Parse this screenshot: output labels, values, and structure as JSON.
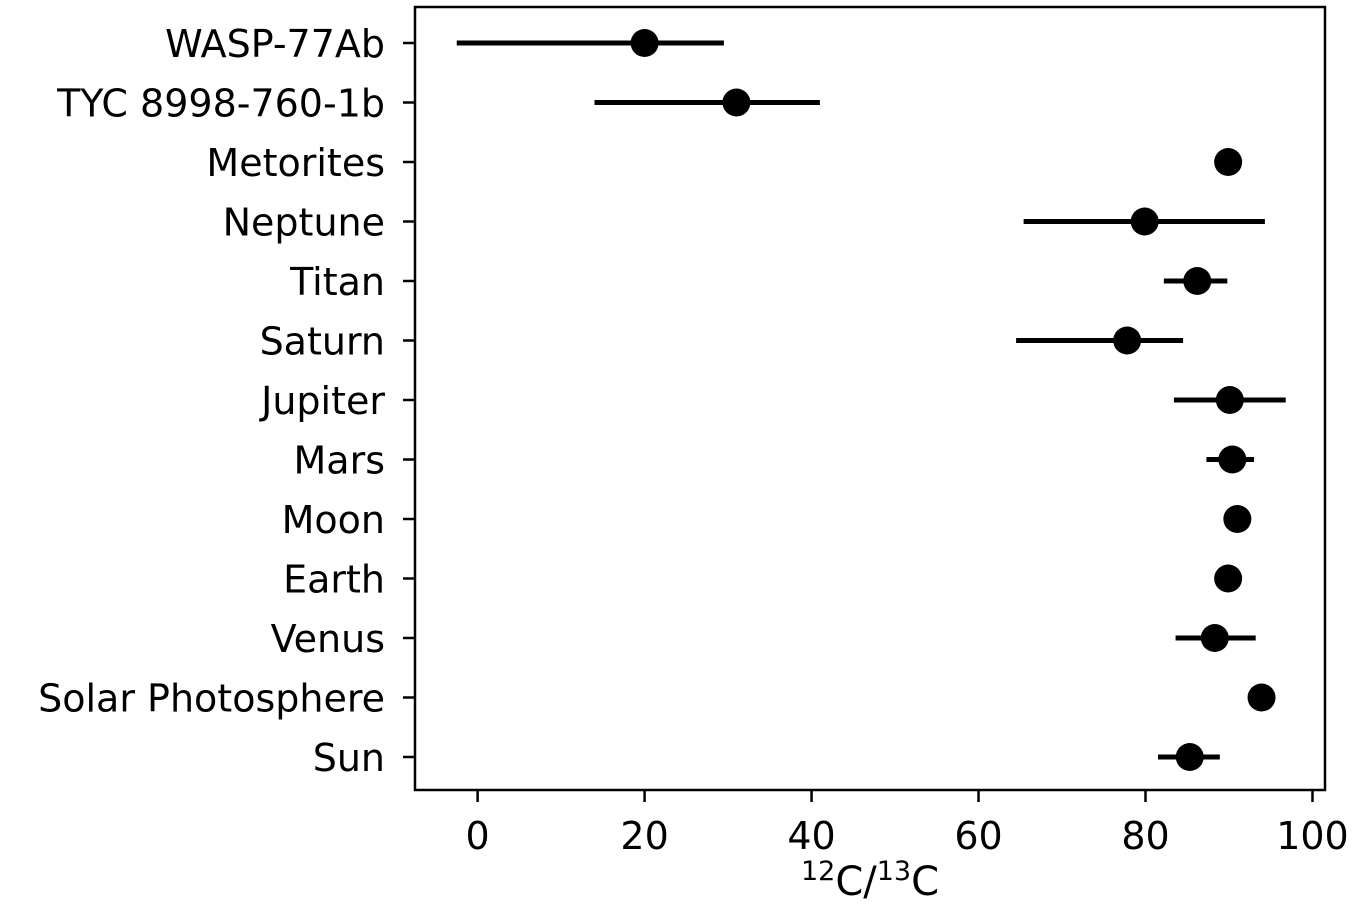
{
  "chart_data": {
    "type": "scatter",
    "orientation": "horizontal",
    "xlabel": {
      "pre1": "12",
      "main1": "C/",
      "pre2": "13",
      "main2": "C"
    },
    "xlim": [
      -7.5,
      101.5
    ],
    "xticks": [
      "0",
      "20",
      "40",
      "60",
      "80",
      "100"
    ],
    "xtick_values": [
      0,
      20,
      40,
      60,
      80,
      100
    ],
    "grid": false,
    "legend": "none",
    "marker_color": "#000000",
    "points": [
      {
        "label": "WASP-77Ab",
        "value": 20.0,
        "low": -2.5,
        "high": 29.5
      },
      {
        "label": "TYC 8998-760-1b",
        "value": 31.0,
        "low": 14.0,
        "high": 41.0
      },
      {
        "label": "Metorites",
        "value": 89.9,
        "low": null,
        "high": null
      },
      {
        "label": "Neptune",
        "value": 79.9,
        "low": 65.4,
        "high": 94.3
      },
      {
        "label": "Titan",
        "value": 86.2,
        "low": 82.2,
        "high": 89.8
      },
      {
        "label": "Saturn",
        "value": 77.8,
        "low": 64.5,
        "high": 84.5
      },
      {
        "label": "Jupiter",
        "value": 90.1,
        "low": 83.4,
        "high": 96.8
      },
      {
        "label": "Mars",
        "value": 90.4,
        "low": 87.3,
        "high": 93.0
      },
      {
        "label": "Moon",
        "value": 91.0,
        "low": null,
        "high": null
      },
      {
        "label": "Earth",
        "value": 89.9,
        "low": null,
        "high": null
      },
      {
        "label": "Venus",
        "value": 88.3,
        "low": 83.6,
        "high": 93.2
      },
      {
        "label": "Solar Photosphere",
        "value": 93.9,
        "low": null,
        "high": null
      },
      {
        "label": "Sun",
        "value": 85.3,
        "low": 81.5,
        "high": 88.9
      }
    ]
  }
}
